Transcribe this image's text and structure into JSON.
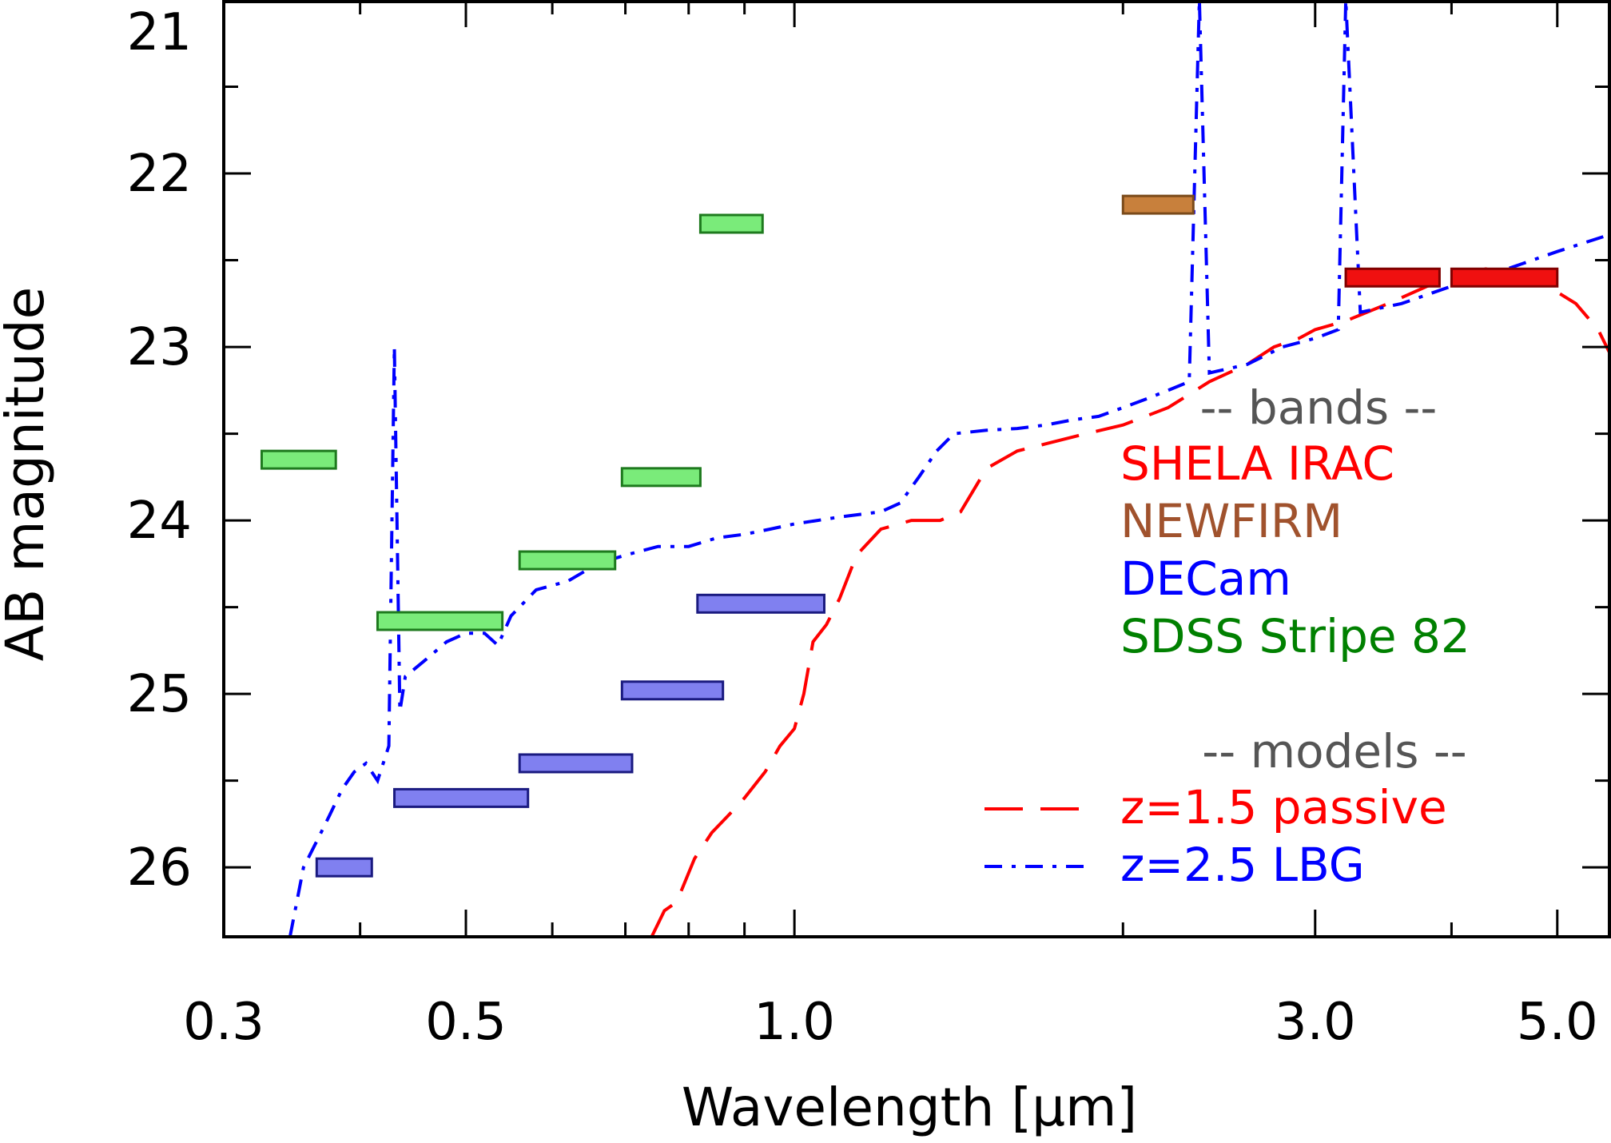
{
  "chart_data": {
    "type": "scatter",
    "title": "",
    "xlabel": "Wavelength [μm]",
    "ylabel": "AB magnitude",
    "xscale": "log",
    "xlim": [
      0.3,
      5.6
    ],
    "ylim": [
      26.4,
      21.0
    ],
    "y_inverted": true,
    "grid": false,
    "legend_placement": "right",
    "x_ticks": [
      {
        "value": 0.3,
        "label": "0.3"
      },
      {
        "value": 0.5,
        "label": "0.5"
      },
      {
        "value": 1.0,
        "label": "1.0"
      },
      {
        "value": 3.0,
        "label": "3.0"
      },
      {
        "value": 5.0,
        "label": "5.0"
      }
    ],
    "x_minor_ticks": [
      0.4,
      0.6,
      0.7,
      0.8,
      0.9,
      2.0,
      4.0
    ],
    "y_ticks": [
      {
        "value": 21,
        "label": "21"
      },
      {
        "value": 22,
        "label": "22"
      },
      {
        "value": 23,
        "label": "23"
      },
      {
        "value": 24,
        "label": "24"
      },
      {
        "value": 25,
        "label": "25"
      },
      {
        "value": 26,
        "label": "26"
      }
    ],
    "y_minor_ticks": [
      21.5,
      22.5,
      23.5,
      24.5,
      25.5,
      26.5
    ],
    "colors": {
      "shela": "#ff0000",
      "newfirm": "#a0522d",
      "decam": "#0000ff",
      "sdss": "#008000",
      "header": "#555555"
    },
    "legend": {
      "bands_header": "-- bands --",
      "bands": [
        {
          "label": "SHELA IRAC",
          "color": "#ff0000"
        },
        {
          "label": "NEWFIRM",
          "color": "#a0522d"
        },
        {
          "label": "DECam",
          "color": "#0000ff"
        },
        {
          "label": "SDSS Stripe 82",
          "color": "#008000"
        }
      ],
      "models_header": "-- models --",
      "models": [
        {
          "label": "z=1.5 passive",
          "color": "#ff0000",
          "dash": "long-dash"
        },
        {
          "label": "z=2.5 LBG",
          "color": "#0000ff",
          "dash": "dash-dot"
        }
      ]
    },
    "band_groups": [
      {
        "group": "SDSS Stripe 82",
        "fill": "#7aeb7a",
        "stroke": "#1e7a1e",
        "bands": [
          {
            "lambda_min": 0.325,
            "lambda_max": 0.38,
            "mag": 23.65
          },
          {
            "lambda_min": 0.415,
            "lambda_max": 0.54,
            "mag": 24.58
          },
          {
            "lambda_min": 0.56,
            "lambda_max": 0.685,
            "mag": 24.23
          },
          {
            "lambda_min": 0.695,
            "lambda_max": 0.82,
            "mag": 23.75
          },
          {
            "lambda_min": 0.82,
            "lambda_max": 0.935,
            "mag": 22.29
          }
        ]
      },
      {
        "group": "DECam",
        "fill": "#8080f0",
        "stroke": "#1a1a80",
        "bands": [
          {
            "lambda_min": 0.365,
            "lambda_max": 0.41,
            "mag": 26.0
          },
          {
            "lambda_min": 0.43,
            "lambda_max": 0.57,
            "mag": 25.6
          },
          {
            "lambda_min": 0.56,
            "lambda_max": 0.71,
            "mag": 25.4
          },
          {
            "lambda_min": 0.695,
            "lambda_max": 0.86,
            "mag": 24.98
          },
          {
            "lambda_min": 0.815,
            "lambda_max": 1.065,
            "mag": 24.48
          }
        ]
      },
      {
        "group": "NEWFIRM",
        "fill": "#c8803c",
        "stroke": "#7a4a1a",
        "bands": [
          {
            "lambda_min": 2.0,
            "lambda_max": 2.32,
            "mag": 22.18
          }
        ]
      },
      {
        "group": "SHELA IRAC",
        "fill": "#f01010",
        "stroke": "#800000",
        "bands": [
          {
            "lambda_min": 3.2,
            "lambda_max": 3.9,
            "mag": 22.6
          },
          {
            "lambda_min": 4.0,
            "lambda_max": 5.0,
            "mag": 22.6
          }
        ]
      }
    ],
    "series": [
      {
        "name": "z=1.5 passive",
        "color": "#ff0000",
        "dash": "long-dash",
        "points": [
          [
            0.74,
            26.4
          ],
          [
            0.76,
            26.25
          ],
          [
            0.78,
            26.2
          ],
          [
            0.81,
            25.95
          ],
          [
            0.84,
            25.8
          ],
          [
            0.87,
            25.7
          ],
          [
            0.9,
            25.6
          ],
          [
            0.94,
            25.45
          ],
          [
            0.97,
            25.3
          ],
          [
            1.0,
            25.2
          ],
          [
            1.02,
            25.0
          ],
          [
            1.04,
            24.7
          ],
          [
            1.07,
            24.6
          ],
          [
            1.1,
            24.45
          ],
          [
            1.14,
            24.2
          ],
          [
            1.2,
            24.05
          ],
          [
            1.28,
            24.0
          ],
          [
            1.36,
            24.0
          ],
          [
            1.42,
            23.95
          ],
          [
            1.5,
            23.7
          ],
          [
            1.6,
            23.6
          ],
          [
            1.72,
            23.55
          ],
          [
            1.85,
            23.5
          ],
          [
            2.0,
            23.45
          ],
          [
            2.2,
            23.35
          ],
          [
            2.4,
            23.2
          ],
          [
            2.6,
            23.1
          ],
          [
            2.75,
            23.0
          ],
          [
            2.9,
            22.95
          ],
          [
            3.0,
            22.9
          ],
          [
            3.2,
            22.85
          ],
          [
            3.5,
            22.75
          ],
          [
            3.8,
            22.65
          ],
          [
            4.0,
            22.6
          ],
          [
            4.3,
            22.55
          ],
          [
            4.6,
            22.6
          ],
          [
            4.9,
            22.65
          ],
          [
            5.2,
            22.75
          ],
          [
            5.45,
            22.9
          ],
          [
            5.6,
            23.05
          ]
        ]
      },
      {
        "name": "z=2.5 LBG",
        "color": "#0000ff",
        "dash": "dash-dot",
        "points": [
          [
            0.345,
            26.4
          ],
          [
            0.355,
            26.0
          ],
          [
            0.365,
            25.85
          ],
          [
            0.375,
            25.7
          ],
          [
            0.385,
            25.55
          ],
          [
            0.395,
            25.45
          ],
          [
            0.405,
            25.4
          ],
          [
            0.415,
            25.5
          ],
          [
            0.425,
            25.3
          ],
          [
            0.43,
            23.0
          ],
          [
            0.435,
            25.1
          ],
          [
            0.44,
            24.9
          ],
          [
            0.46,
            24.8
          ],
          [
            0.48,
            24.7
          ],
          [
            0.5,
            24.65
          ],
          [
            0.52,
            24.65
          ],
          [
            0.535,
            24.72
          ],
          [
            0.55,
            24.55
          ],
          [
            0.58,
            24.4
          ],
          [
            0.62,
            24.35
          ],
          [
            0.66,
            24.25
          ],
          [
            0.7,
            24.2
          ],
          [
            0.75,
            24.15
          ],
          [
            0.8,
            24.15
          ],
          [
            0.85,
            24.1
          ],
          [
            0.9,
            24.08
          ],
          [
            0.95,
            24.05
          ],
          [
            1.0,
            24.02
          ],
          [
            1.05,
            24.0
          ],
          [
            1.1,
            23.98
          ],
          [
            1.2,
            23.95
          ],
          [
            1.25,
            23.9
          ],
          [
            1.3,
            23.75
          ],
          [
            1.35,
            23.6
          ],
          [
            1.4,
            23.5
          ],
          [
            1.5,
            23.48
          ],
          [
            1.6,
            23.47
          ],
          [
            1.7,
            23.45
          ],
          [
            1.8,
            23.42
          ],
          [
            1.9,
            23.4
          ],
          [
            2.0,
            23.35
          ],
          [
            2.1,
            23.3
          ],
          [
            2.2,
            23.25
          ],
          [
            2.3,
            23.2
          ],
          [
            2.35,
            21.0
          ],
          [
            2.4,
            23.15
          ],
          [
            2.6,
            23.1
          ],
          [
            2.8,
            23.0
          ],
          [
            3.0,
            22.95
          ],
          [
            3.15,
            22.9
          ],
          [
            3.2,
            21.0
          ],
          [
            3.3,
            22.8
          ],
          [
            3.6,
            22.75
          ],
          [
            4.0,
            22.65
          ],
          [
            4.5,
            22.55
          ],
          [
            5.0,
            22.45
          ],
          [
            5.6,
            22.35
          ]
        ]
      }
    ]
  }
}
